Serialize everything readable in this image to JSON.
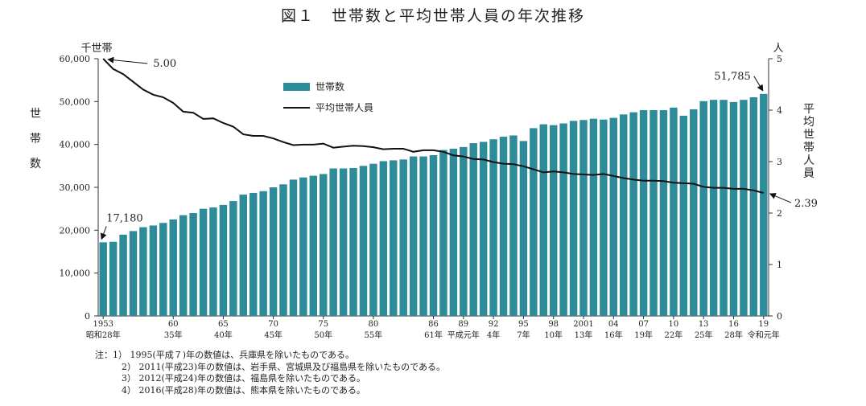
{
  "title": "図１　世帯数と平均世帯人員の年次推移",
  "chart_data": {
    "type": "bar+line",
    "y_left": {
      "unit": "千世帯",
      "label": "世\n帯\n数",
      "ylim": [
        0,
        60000
      ],
      "ticks": [
        "0",
        "10,000",
        "20,000",
        "30,000",
        "40,000",
        "50,000",
        "60,000"
      ]
    },
    "y_right": {
      "unit": "人",
      "label": "平\n均\n世\n帯\n人\n員",
      "ylim": [
        0,
        5
      ],
      "ticks": [
        "0",
        "1",
        "2",
        "3",
        "4",
        "5"
      ]
    },
    "legend": {
      "placement": "upper-middle",
      "bar": "世帯数",
      "line": "平均世帯人員"
    },
    "years": [
      1953,
      1954,
      1955,
      1956,
      1957,
      1958,
      1959,
      1960,
      1961,
      1962,
      1963,
      1964,
      1965,
      1966,
      1967,
      1968,
      1969,
      1970,
      1971,
      1972,
      1973,
      1974,
      1975,
      1976,
      1977,
      1978,
      1979,
      1980,
      1981,
      1982,
      1983,
      1984,
      1985,
      1986,
      1987,
      1988,
      1989,
      1990,
      1991,
      1992,
      1993,
      1994,
      1995,
      1996,
      1997,
      1998,
      1999,
      2000,
      2001,
      2002,
      2003,
      2004,
      2005,
      2006,
      2007,
      2008,
      2009,
      2010,
      2011,
      2012,
      2013,
      2014,
      2015,
      2016,
      2017,
      2018,
      2019
    ],
    "series": [
      {
        "name": "世帯数",
        "type": "bar",
        "color": "#2e8b9a",
        "values": [
          17180,
          17300,
          18960,
          19800,
          20700,
          21100,
          21700,
          22500,
          23500,
          24000,
          25000,
          25300,
          25900,
          26800,
          28300,
          28700,
          29100,
          30000,
          30700,
          31800,
          32300,
          32700,
          33100,
          34400,
          34400,
          34500,
          35000,
          35500,
          36100,
          36300,
          36500,
          37200,
          37200,
          37500,
          38700,
          39000,
          39400,
          40300,
          40600,
          41200,
          41800,
          42100,
          40800,
          43800,
          44700,
          44500,
          44900,
          45500,
          45700,
          46000,
          45800,
          46200,
          47000,
          47500,
          48000,
          48000,
          48000,
          48600,
          46700,
          48200,
          50100,
          50400,
          50400,
          49900,
          50400,
          51000,
          51785
        ]
      },
      {
        "name": "平均世帯人員",
        "type": "line",
        "color": "#111111",
        "values": [
          5.0,
          4.8,
          4.7,
          4.55,
          4.4,
          4.3,
          4.25,
          4.14,
          3.97,
          3.95,
          3.83,
          3.84,
          3.75,
          3.68,
          3.53,
          3.5,
          3.5,
          3.45,
          3.38,
          3.32,
          3.33,
          3.33,
          3.35,
          3.27,
          3.29,
          3.31,
          3.3,
          3.28,
          3.24,
          3.25,
          3.25,
          3.19,
          3.22,
          3.22,
          3.19,
          3.12,
          3.1,
          3.05,
          3.04,
          2.99,
          2.96,
          2.95,
          2.91,
          2.85,
          2.79,
          2.81,
          2.79,
          2.76,
          2.75,
          2.74,
          2.76,
          2.72,
          2.68,
          2.65,
          2.63,
          2.63,
          2.62,
          2.59,
          2.58,
          2.57,
          2.51,
          2.49,
          2.49,
          2.47,
          2.47,
          2.44,
          2.39
        ]
      }
    ],
    "x_ticks": [
      {
        "year": 1953,
        "top": "1953",
        "bottom": "昭和28年"
      },
      {
        "year": 1960,
        "top": "60",
        "bottom": "35年"
      },
      {
        "year": 1965,
        "top": "65",
        "bottom": "40年"
      },
      {
        "year": 1970,
        "top": "70",
        "bottom": "45年"
      },
      {
        "year": 1975,
        "top": "75",
        "bottom": "50年"
      },
      {
        "year": 1980,
        "top": "80",
        "bottom": "55年"
      },
      {
        "year": 1986,
        "top": "86",
        "bottom": "61年"
      },
      {
        "year": 1989,
        "top": "89",
        "bottom": "平成元年"
      },
      {
        "year": 1992,
        "top": "92",
        "bottom": "4年"
      },
      {
        "year": 1995,
        "top": "95",
        "bottom": "7年"
      },
      {
        "year": 1998,
        "top": "98",
        "bottom": "10年"
      },
      {
        "year": 2001,
        "top": "2001",
        "bottom": "13年"
      },
      {
        "year": 2004,
        "top": "04",
        "bottom": "16年"
      },
      {
        "year": 2007,
        "top": "07",
        "bottom": "19年"
      },
      {
        "year": 2010,
        "top": "10",
        "bottom": "22年"
      },
      {
        "year": 2013,
        "top": "13",
        "bottom": "25年"
      },
      {
        "year": 2016,
        "top": "16",
        "bottom": "28年"
      },
      {
        "year": 2019,
        "top": "19",
        "bottom": "令和元年"
      }
    ],
    "annotations": [
      {
        "series": "世帯数",
        "year": 1953,
        "text": "17,180"
      },
      {
        "series": "世帯数",
        "year": 2019,
        "text": "51,785"
      },
      {
        "series": "平均世帯人員",
        "year": 1953,
        "text": "5.00"
      },
      {
        "series": "平均世帯人員",
        "year": 2019,
        "text": "2.39"
      }
    ]
  },
  "notes": [
    "注：1） 1995(平成７)年の数値は、兵庫県を除いたものである。",
    "2） 2011(平成23)年の数値は、岩手県、宮城県及び福島県を除いたものである。",
    "3） 2012(平成24)年の数値は、福島県を除いたものである。",
    "4） 2016(平成28)年の数値は、熊本県を除いたものである。"
  ]
}
